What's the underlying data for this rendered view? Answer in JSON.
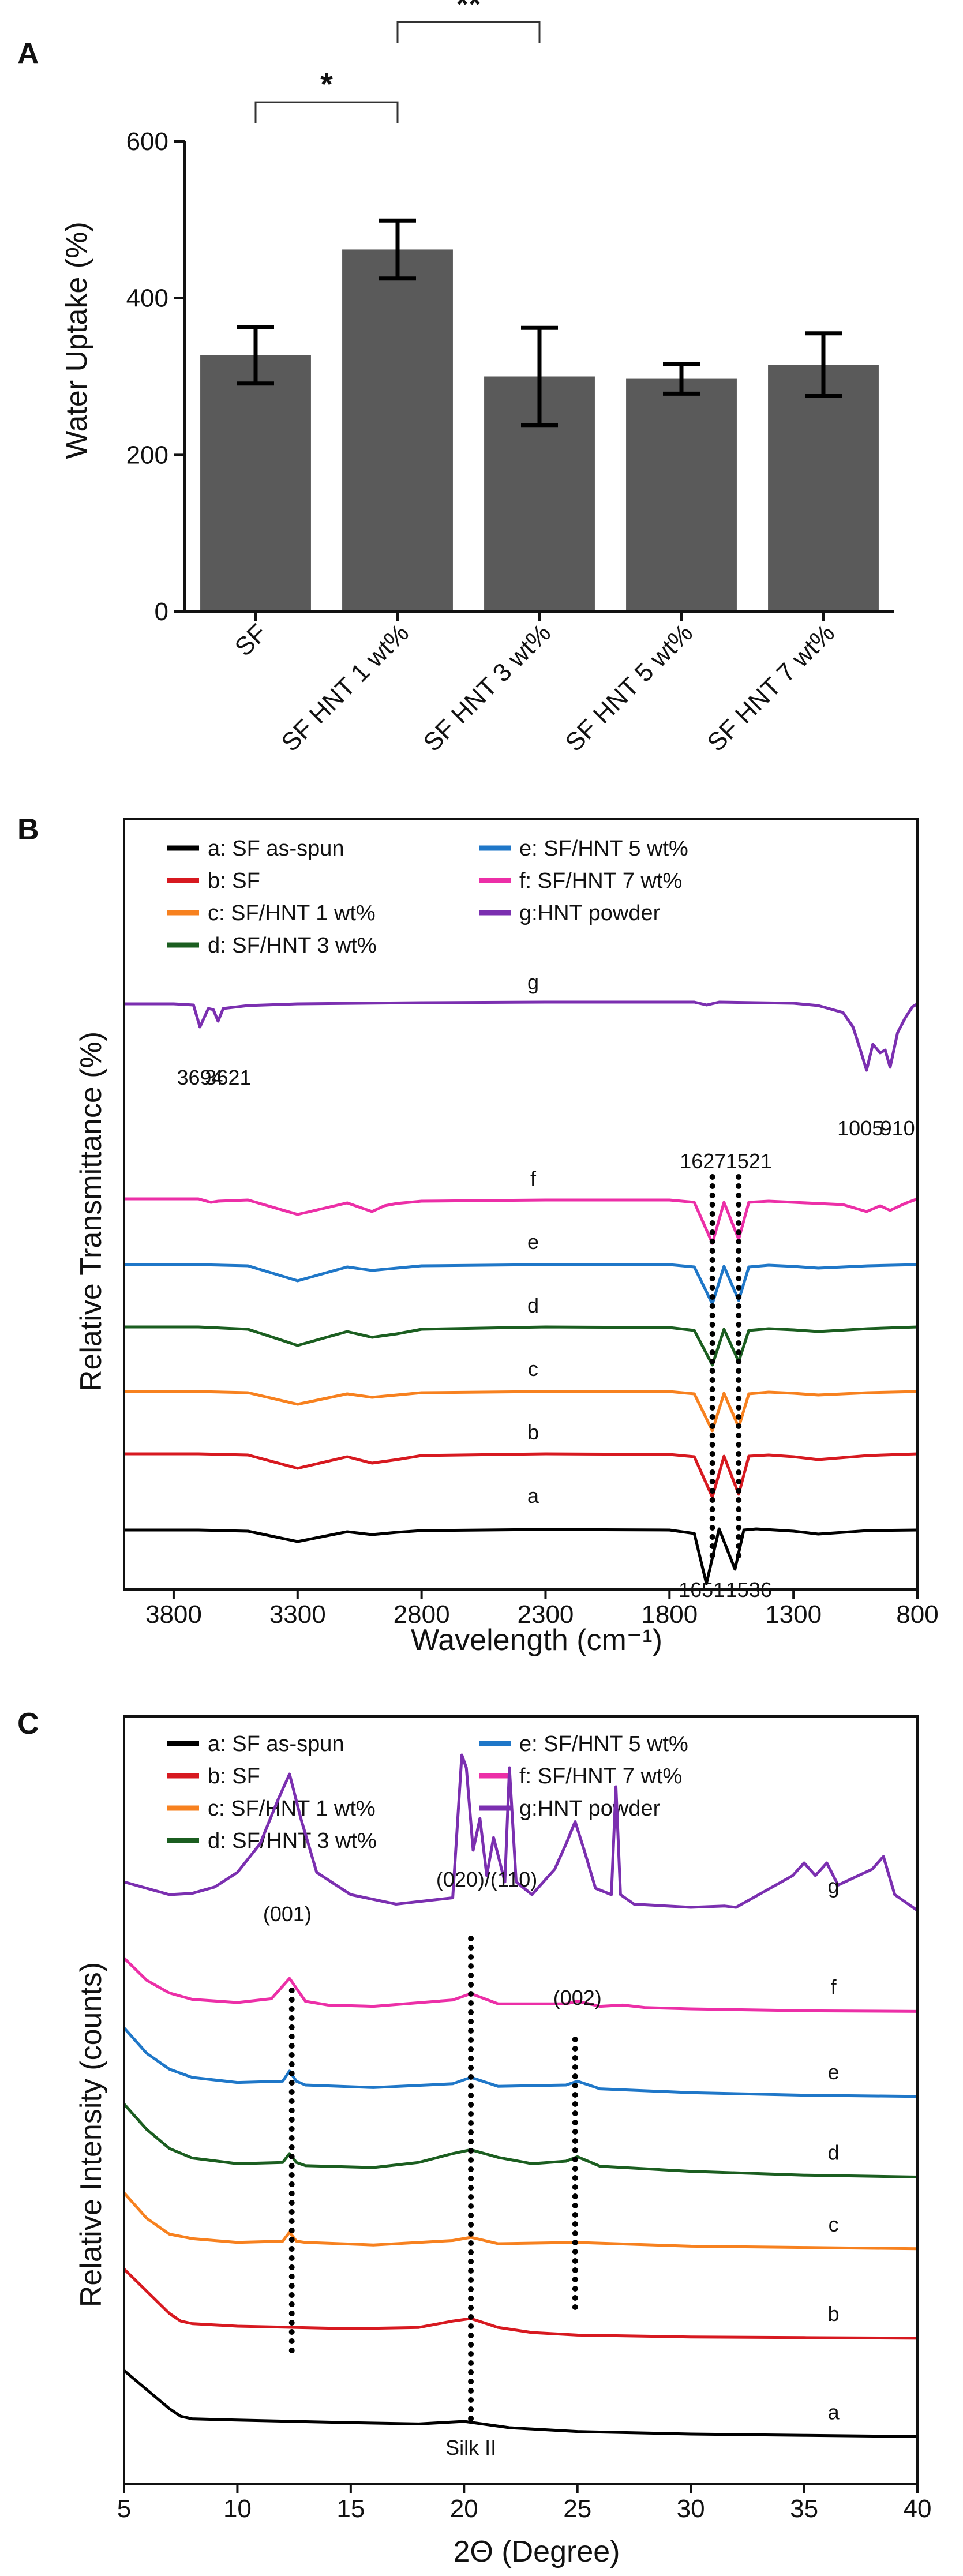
{
  "chart_data": [
    {
      "panel": "A",
      "type": "bar",
      "ylabel": "Water Uptake (%)",
      "ylim": [
        0,
        600
      ],
      "yticks": [
        0,
        200,
        400,
        600
      ],
      "categories": [
        "SF",
        "SF HNT 1 wt%",
        "SF HNT 3 wt%",
        "SF HNT 5 wt%",
        "SF HNT 7 wt%"
      ],
      "values": [
        327,
        462,
        300,
        297,
        315
      ],
      "errors": [
        36,
        37,
        62,
        19,
        40
      ],
      "bar_color": "#5a5a5a",
      "significance": [
        {
          "from": 0,
          "to": 1,
          "label": "*"
        },
        {
          "from": 1,
          "to": 2,
          "label": "**"
        },
        {
          "from": 1,
          "to": 3,
          "label": "**"
        },
        {
          "from": 1,
          "to": 4,
          "label": "**"
        }
      ]
    },
    {
      "panel": "B",
      "type": "line",
      "xlabel": "Wavelength (cm⁻¹)",
      "ylabel": "Relative Transmittance (%)",
      "xlim": [
        4000,
        800
      ],
      "xticks": [
        3800,
        3300,
        2800,
        2300,
        1800,
        1300,
        800
      ],
      "legend": [
        {
          "label": "a: SF as-spun",
          "color": "#000000"
        },
        {
          "label": "b: SF",
          "color": "#d71920"
        },
        {
          "label": "c: SF/HNT 1 wt%",
          "color": "#f7811f"
        },
        {
          "label": "d: SF/HNT 3 wt%",
          "color": "#1b5e20"
        },
        {
          "label": "e: SF/HNT 5 wt%",
          "color": "#1f77c8"
        },
        {
          "label": "f: SF/HNT 7 wt%",
          "color": "#ec2fa7"
        },
        {
          "label": "g:HNT powder",
          "color": "#7b2fb0"
        }
      ],
      "series": [
        {
          "name": "a",
          "label": "a",
          "x": [
            4000,
            3700,
            3500,
            3300,
            3100,
            3000,
            2900,
            2800,
            2300,
            1800,
            1700,
            1651,
            1600,
            1536,
            1500,
            1450,
            1300,
            1200,
            1000,
            800
          ],
          "y": [
            0.08,
            0.08,
            0.06,
            -0.12,
            0.05,
            0.0,
            0.04,
            0.07,
            0.09,
            0.08,
            0.02,
            -0.85,
            0.1,
            -0.6,
            0.08,
            0.1,
            0.06,
            0.01,
            0.07,
            0.08
          ]
        },
        {
          "name": "b",
          "label": "b",
          "x": [
            4000,
            3700,
            3500,
            3300,
            3100,
            3000,
            2900,
            2800,
            2300,
            1800,
            1700,
            1627,
            1580,
            1521,
            1480,
            1400,
            1300,
            1200,
            1000,
            800
          ],
          "y": [
            0.3,
            0.3,
            0.28,
            0.05,
            0.25,
            0.14,
            0.2,
            0.27,
            0.3,
            0.29,
            0.25,
            -0.45,
            0.26,
            -0.4,
            0.26,
            0.28,
            0.25,
            0.2,
            0.27,
            0.3
          ]
        },
        {
          "name": "c",
          "label": "c",
          "x": [
            4000,
            3700,
            3500,
            3300,
            3100,
            3000,
            2900,
            2800,
            2300,
            1800,
            1700,
            1627,
            1580,
            1521,
            1480,
            1400,
            1300,
            1200,
            1000,
            800
          ],
          "y": [
            0.28,
            0.28,
            0.26,
            0.06,
            0.24,
            0.18,
            0.22,
            0.26,
            0.28,
            0.28,
            0.24,
            -0.4,
            0.25,
            -0.34,
            0.24,
            0.27,
            0.25,
            0.22,
            0.26,
            0.28
          ]
        },
        {
          "name": "d",
          "label": "d",
          "x": [
            4000,
            3700,
            3500,
            3300,
            3100,
            3000,
            2900,
            2800,
            2300,
            1800,
            1700,
            1627,
            1580,
            1521,
            1480,
            1400,
            1300,
            1200,
            1000,
            800
          ],
          "y": [
            0.3,
            0.3,
            0.26,
            -0.02,
            0.22,
            0.12,
            0.18,
            0.26,
            0.3,
            0.29,
            0.24,
            -0.36,
            0.26,
            -0.3,
            0.24,
            0.27,
            0.25,
            0.22,
            0.27,
            0.3
          ]
        },
        {
          "name": "e",
          "label": "e",
          "x": [
            4000,
            3700,
            3500,
            3300,
            3100,
            3000,
            2900,
            2800,
            2300,
            1800,
            1700,
            1627,
            1580,
            1521,
            1480,
            1400,
            1300,
            1200,
            1000,
            800
          ],
          "y": [
            0.28,
            0.28,
            0.26,
            0.0,
            0.24,
            0.18,
            0.22,
            0.26,
            0.28,
            0.28,
            0.24,
            -0.4,
            0.25,
            -0.34,
            0.24,
            0.27,
            0.25,
            0.22,
            0.26,
            0.28
          ]
        },
        {
          "name": "f",
          "label": "f",
          "x": [
            4000,
            3700,
            3650,
            3620,
            3500,
            3300,
            3100,
            3000,
            2950,
            2900,
            2800,
            2300,
            1800,
            1700,
            1627,
            1580,
            1521,
            1480,
            1400,
            1300,
            1100,
            1005,
            950,
            910,
            850,
            800
          ],
          "y": [
            0.32,
            0.32,
            0.26,
            0.28,
            0.3,
            0.05,
            0.25,
            0.1,
            0.2,
            0.24,
            0.28,
            0.3,
            0.3,
            0.26,
            -0.45,
            0.26,
            -0.38,
            0.26,
            0.28,
            0.26,
            0.22,
            0.1,
            0.2,
            0.12,
            0.24,
            0.32
          ]
        },
        {
          "name": "g",
          "label": "g",
          "x": [
            4000,
            3800,
            3720,
            3694,
            3660,
            3640,
            3621,
            3600,
            3500,
            3300,
            2800,
            2300,
            1800,
            1700,
            1650,
            1630,
            1600,
            1300,
            1200,
            1100,
            1060,
            1030,
            1005,
            980,
            950,
            930,
            910,
            880,
            850,
            820,
            800
          ],
          "y": [
            0.3,
            0.3,
            0.28,
            -0.1,
            0.22,
            0.2,
            0.0,
            0.22,
            0.27,
            0.3,
            0.32,
            0.33,
            0.33,
            0.33,
            0.28,
            0.3,
            0.33,
            0.31,
            0.27,
            0.15,
            -0.1,
            -0.5,
            -0.85,
            -0.4,
            -0.55,
            -0.5,
            -0.8,
            -0.2,
            0.05,
            0.25,
            0.3
          ]
        }
      ],
      "peak_labels": [
        "3694",
        "3621",
        "1005",
        "910",
        "1627",
        "1521",
        "1651",
        "1536"
      ]
    },
    {
      "panel": "C",
      "type": "line",
      "xlabel": "2Θ (Degree)",
      "ylabel": "Relative Intensity (counts)",
      "xlim": [
        5,
        40
      ],
      "xticks": [
        5,
        10,
        15,
        20,
        25,
        30,
        35,
        40
      ],
      "legend": [
        {
          "label": "a: SF as-spun",
          "color": "#000000"
        },
        {
          "label": "b: SF",
          "color": "#d71920"
        },
        {
          "label": "c: SF/HNT 1 wt%",
          "color": "#f7811f"
        },
        {
          "label": "d: SF/HNT 3 wt%",
          "color": "#1b5e20"
        },
        {
          "label": "e: SF/HNT 5 wt%",
          "color": "#1f77c8"
        },
        {
          "label": "f: SF/HNT 7 wt%",
          "color": "#ec2fa7"
        },
        {
          "label": "g:HNT powder",
          "color": "#7b2fb0"
        }
      ],
      "series": [
        {
          "name": "a",
          "label": "a",
          "x": [
            5,
            6,
            7,
            7.5,
            8,
            10,
            15,
            18,
            20,
            22,
            25,
            30,
            35,
            40
          ],
          "y": [
            1.1,
            0.8,
            0.5,
            0.38,
            0.34,
            0.32,
            0.28,
            0.26,
            0.3,
            0.2,
            0.14,
            0.1,
            0.08,
            0.06
          ]
        },
        {
          "name": "b",
          "label": "b",
          "x": [
            5,
            6,
            7,
            7.5,
            8,
            10,
            15,
            18,
            19.5,
            20.3,
            21.5,
            23,
            25,
            30,
            35,
            40
          ],
          "y": [
            2.7,
            2.35,
            2.0,
            1.88,
            1.84,
            1.8,
            1.76,
            1.78,
            1.88,
            1.92,
            1.78,
            1.7,
            1.66,
            1.63,
            1.62,
            1.61
          ]
        },
        {
          "name": "c",
          "label": "c",
          "x": [
            5,
            6,
            7,
            8,
            10,
            12,
            12.3,
            12.6,
            13,
            16,
            19.5,
            20.3,
            21.5,
            25,
            30,
            35,
            40
          ],
          "y": [
            3.9,
            3.5,
            3.25,
            3.18,
            3.12,
            3.14,
            3.28,
            3.14,
            3.12,
            3.08,
            3.15,
            3.2,
            3.1,
            3.12,
            3.06,
            3.04,
            3.02
          ]
        },
        {
          "name": "d",
          "label": "d",
          "x": [
            5,
            6,
            7,
            8,
            10,
            12,
            12.3,
            12.6,
            13,
            16,
            18,
            19.5,
            20.3,
            21.5,
            23,
            24.5,
            25,
            26,
            30,
            35,
            40
          ],
          "y": [
            5.3,
            4.9,
            4.6,
            4.45,
            4.36,
            4.38,
            4.52,
            4.38,
            4.33,
            4.3,
            4.38,
            4.52,
            4.58,
            4.46,
            4.36,
            4.4,
            4.47,
            4.32,
            4.24,
            4.18,
            4.15
          ]
        },
        {
          "name": "e",
          "label": "e",
          "x": [
            5,
            6,
            7,
            8,
            10,
            12,
            12.3,
            12.6,
            13,
            16,
            19.5,
            20.3,
            21.5,
            24.5,
            25,
            26,
            30,
            35,
            40
          ],
          "y": [
            6.5,
            6.1,
            5.85,
            5.72,
            5.64,
            5.66,
            5.82,
            5.66,
            5.6,
            5.56,
            5.62,
            5.72,
            5.58,
            5.6,
            5.66,
            5.54,
            5.48,
            5.44,
            5.42
          ]
        },
        {
          "name": "f",
          "label": "f",
          "x": [
            5,
            6,
            7,
            8,
            10,
            11.5,
            12.3,
            13,
            14,
            16,
            19.5,
            20.3,
            21.5,
            24.5,
            25,
            26,
            27,
            28,
            30,
            35,
            40
          ],
          "y": [
            7.6,
            7.25,
            7.05,
            6.95,
            6.9,
            6.96,
            7.28,
            6.92,
            6.86,
            6.84,
            6.94,
            7.04,
            6.88,
            6.88,
            6.92,
            6.84,
            6.86,
            6.82,
            6.8,
            6.77,
            6.76
          ]
        },
        {
          "name": "g",
          "label": "g",
          "x": [
            5,
            6,
            7,
            8,
            9,
            10,
            11,
            11.8,
            12.3,
            12.8,
            13.5,
            15,
            17,
            19.5,
            19.9,
            20.1,
            20.4,
            20.7,
            21.0,
            21.3,
            21.8,
            22.0,
            22.3,
            23,
            24,
            24.5,
            24.9,
            25.3,
            25.8,
            26.5,
            26.7,
            26.9,
            27.5,
            30,
            31.5,
            32,
            34.5,
            35,
            35.5,
            36,
            36.5,
            38,
            38.5,
            39,
            40
          ],
          "y": [
            8.8,
            8.7,
            8.6,
            8.62,
            8.72,
            8.95,
            9.4,
            10.1,
            10.5,
            9.8,
            8.95,
            8.6,
            8.45,
            8.55,
            10.8,
            10.6,
            9.3,
            9.8,
            8.9,
            9.5,
            8.8,
            10.6,
            8.8,
            8.6,
            9.0,
            9.4,
            9.75,
            9.3,
            8.7,
            8.6,
            10.3,
            8.6,
            8.45,
            8.4,
            8.42,
            8.4,
            8.9,
            9.1,
            8.9,
            9.1,
            8.75,
            9.0,
            9.2,
            8.6,
            8.35
          ]
        }
      ],
      "peak_labels": [
        "(001)",
        "(020)/(110)",
        "(002)",
        "Silk II"
      ]
    }
  ]
}
